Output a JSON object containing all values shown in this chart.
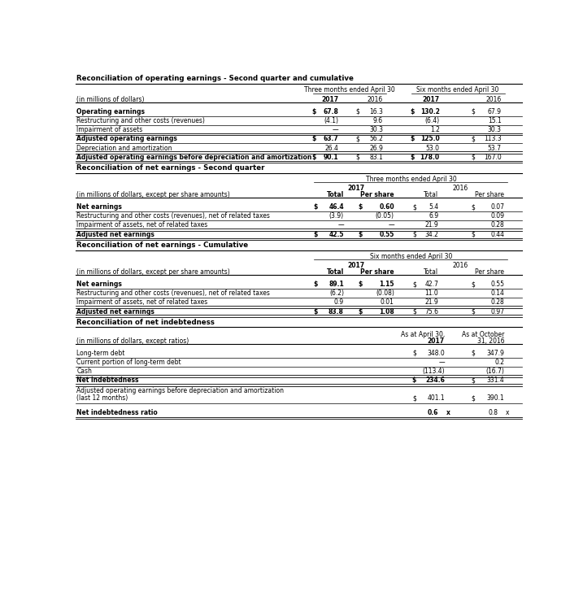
{
  "title1": "Reconciliation of operating earnings - Second quarter and cumulative",
  "title2": "Reconciliation of net earnings - Second quarter",
  "title3": "Reconciliation of net earnings - Cumulative",
  "title4": "Reconciliation of net indebtedness",
  "bg": "#ffffff",
  "base_fs": 5.5,
  "title_fs": 6.2,
  "s1": {
    "hdr1_3mo": "Three months ended April 30",
    "hdr1_6mo": "Six months ended April 30",
    "units": "(in millions of dollars)",
    "col_2017_3": "2017",
    "col_2016_3": "2016",
    "col_2017_6": "2017",
    "col_2016_6": "2016",
    "rows": [
      [
        "Operating earnings",
        true,
        "$",
        "67.8",
        "$",
        "16.3",
        "$",
        "130.2",
        "$",
        "67.9"
      ],
      [
        "Restructuring and other costs (revenues)",
        false,
        "",
        "(4.1)",
        "",
        "9.6",
        "",
        "(6.4)",
        "",
        "15.1"
      ],
      [
        "Impairment of assets",
        false,
        "",
        "—",
        "",
        "30.3",
        "",
        "1.2",
        "",
        "30.3"
      ],
      [
        "Adjusted operating earnings",
        true,
        "$",
        "63.7",
        "$",
        "56.2",
        "$",
        "125.0",
        "$",
        "113.3"
      ],
      [
        "Depreciation and amortization",
        false,
        "",
        "26.4",
        "",
        "26.9",
        "",
        "53.0",
        "",
        "53.7"
      ],
      [
        "Adjusted operating earnings before depreciation and amortization",
        true,
        "$",
        "90.1",
        "$",
        "83.1",
        "$",
        "178.0",
        "$",
        "167.0"
      ]
    ],
    "double_after": [
      2,
      4,
      5
    ],
    "single_after": [
      0,
      1,
      3
    ]
  },
  "s2": {
    "hdr1": "Three months ended April 30",
    "units": "(in millions of dollars, except per share amounts)",
    "yr2017": "2017",
    "yr2016": "2016",
    "col_tot1": "Total",
    "col_ps1": "Per share",
    "col_tot2": "Total",
    "col_ps2": "Per share",
    "rows": [
      [
        "Net earnings",
        true,
        "$",
        "46.4",
        "$",
        "0.60",
        "$",
        "5.4",
        "$",
        "0.07"
      ],
      [
        "Restructuring and other costs (revenues), net of related taxes",
        false,
        "",
        "(3.9)",
        "",
        "(0.05)",
        "",
        "6.9",
        "",
        "0.09"
      ],
      [
        "Impairment of assets, net of related taxes",
        false,
        "",
        "—",
        "",
        "—",
        "",
        "21.9",
        "",
        "0.28"
      ],
      [
        "Adjusted net earnings",
        true,
        "$",
        "42.5",
        "$",
        "0.55",
        "$",
        "34.2",
        "$",
        "0.44"
      ]
    ],
    "double_after": [
      2,
      3
    ],
    "single_after": [
      0,
      1
    ]
  },
  "s3": {
    "hdr1": "Six months ended April 30",
    "units": "(in millions of dollars, except per share amounts)",
    "yr2017": "2017",
    "yr2016": "2016",
    "col_tot1": "Total",
    "col_ps1": "Per share",
    "col_tot2": "Total",
    "col_ps2": "Per share",
    "rows": [
      [
        "Net earnings",
        true,
        "$",
        "89.1",
        "$",
        "1.15",
        "$",
        "42.7",
        "$",
        "0.55"
      ],
      [
        "Restructuring and other costs (revenues), net of related taxes",
        false,
        "",
        "(6.2)",
        "",
        "(0.08)",
        "",
        "11.0",
        "",
        "0.14"
      ],
      [
        "Impairment of assets, net of related taxes",
        false,
        "",
        "0.9",
        "",
        "0.01",
        "",
        "21.9",
        "",
        "0.28"
      ],
      [
        "Adjusted net earnings",
        true,
        "$",
        "83.8",
        "$",
        "1.08",
        "$",
        "75.6",
        "$",
        "0.97"
      ]
    ],
    "double_after": [
      2,
      3
    ],
    "single_after": [
      0,
      1
    ]
  },
  "s4": {
    "units": "(in millions of dollars, except ratios)",
    "hdr_apr": "As at April 30,",
    "hdr_apr2": "2017",
    "hdr_oct": "As at October",
    "hdr_oct2": "31, 2016",
    "rows": [
      [
        "Long-term debt",
        false,
        "$",
        "348.0",
        "$",
        "347.9"
      ],
      [
        "Current portion of long-term debt",
        false,
        "",
        "—",
        "",
        "0.2"
      ],
      [
        "Cash",
        false,
        "",
        "(113.4)",
        "",
        "(16.7)"
      ],
      [
        "Net indebtedness",
        true,
        "$",
        "234.6",
        "$",
        "331.4"
      ]
    ],
    "adj_label1": "Adjusted operating earnings before depreciation and amortization",
    "adj_label2": "(last 12 months)",
    "adj_d1": "$",
    "adj_v1": "401.1",
    "adj_d2": "$",
    "adj_v2": "390.1",
    "ratio_label": "Net indebtedness ratio",
    "ratio_v1": "0.6",
    "ratio_x1": "x",
    "ratio_v2": "0.8",
    "ratio_x2": "x",
    "double_after": [
      2,
      3
    ],
    "single_after": [
      0,
      1
    ]
  }
}
